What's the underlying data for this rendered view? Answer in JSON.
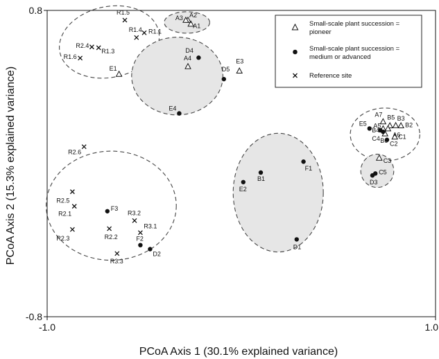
{
  "chart_data": {
    "type": "scatter",
    "title": "",
    "xlabel": "PCoA Axis 1 (30.1% explained variance)",
    "ylabel": "PCoA Axis 2  (15.3% explained variance)",
    "xlim": [
      -1.0,
      1.0
    ],
    "ylim": [
      -0.8,
      0.8
    ],
    "x_ticks": [
      {
        "value": -1.0,
        "label": "-1.0"
      },
      {
        "value": 1.0,
        "label": "1.0"
      }
    ],
    "y_ticks": [
      {
        "value": 0.8,
        "label": "0.8"
      },
      {
        "value": -0.8,
        "label": "-0.8"
      }
    ],
    "grid": false,
    "legend_position": "top-right",
    "colors": {
      "marker": "#111111",
      "hull_fill": "#e6e6e6",
      "hull_stroke": "#444444"
    },
    "series": [
      {
        "name": "Small-scale plant succession = pioneer",
        "marker": "triangle-open",
        "points": [
          {
            "label": "A1",
            "x": -0.26,
            "y": 0.729
          },
          {
            "label": "A2",
            "x": -0.275,
            "y": 0.749
          },
          {
            "label": "A3",
            "x": -0.286,
            "y": 0.749
          },
          {
            "label": "A4",
            "x": -0.275,
            "y": 0.507
          },
          {
            "label": "E1",
            "x": -0.63,
            "y": 0.467
          },
          {
            "label": "E3",
            "x": -0.01,
            "y": 0.484
          },
          {
            "label": "A7",
            "x": 0.73,
            "y": 0.219
          },
          {
            "label": "B5",
            "x": 0.765,
            "y": 0.198
          },
          {
            "label": "B3",
            "x": 0.795,
            "y": 0.199
          },
          {
            "label": "B2",
            "x": 0.822,
            "y": 0.198
          },
          {
            "label": "A5",
            "x": 0.73,
            "y": 0.182
          },
          {
            "label": "A6",
            "x": 0.755,
            "y": 0.182
          },
          {
            "label": "B6",
            "x": 0.74,
            "y": 0.156
          },
          {
            "label": "C1",
            "x": 0.79,
            "y": 0.139
          },
          {
            "label": "C3",
            "x": 0.71,
            "y": 0.029
          }
        ]
      },
      {
        "name": "Small-scale plant succession = medium or advanced",
        "marker": "circle-filled",
        "points": [
          {
            "label": "D4",
            "x": -0.22,
            "y": 0.553
          },
          {
            "label": "D5",
            "x": -0.09,
            "y": 0.441
          },
          {
            "label": "E4",
            "x": -0.32,
            "y": 0.262
          },
          {
            "label": "E5",
            "x": 0.66,
            "y": 0.183
          },
          {
            "label": "B4",
            "x": 0.715,
            "y": 0.174
          },
          {
            "label": "C4",
            "x": 0.73,
            "y": 0.166
          },
          {
            "label": "C2",
            "x": 0.75,
            "y": 0.124
          },
          {
            "label": "C5",
            "x": 0.69,
            "y": -0.052
          },
          {
            "label": "D3",
            "x": 0.675,
            "y": -0.062
          },
          {
            "label": "B1",
            "x": 0.1,
            "y": -0.047
          },
          {
            "label": "E2",
            "x": 0.01,
            "y": -0.097
          },
          {
            "label": "F1",
            "x": 0.32,
            "y": 0.01
          },
          {
            "label": "D1",
            "x": 0.285,
            "y": -0.396
          },
          {
            "label": "F3",
            "x": -0.69,
            "y": -0.249
          },
          {
            "label": "F2",
            "x": -0.52,
            "y": -0.426
          },
          {
            "label": "D2",
            "x": -0.47,
            "y": -0.447
          }
        ]
      },
      {
        "name": "Reference site",
        "marker": "x",
        "points": [
          {
            "label": "R1.5",
            "x": -0.6,
            "y": 0.749
          },
          {
            "label": "R1.4",
            "x": -0.54,
            "y": 0.658
          },
          {
            "label": "R1.1",
            "x": -0.5,
            "y": 0.683
          },
          {
            "label": "R2.4",
            "x": -0.77,
            "y": 0.609
          },
          {
            "label": "R1.3",
            "x": -0.735,
            "y": 0.605
          },
          {
            "label": "R1.6",
            "x": -0.83,
            "y": 0.551
          },
          {
            "label": "R2.6",
            "x": -0.81,
            "y": 0.088
          },
          {
            "label": "R2.5",
            "x": -0.87,
            "y": -0.147
          },
          {
            "label": "R2.1",
            "x": -0.86,
            "y": -0.223
          },
          {
            "label": "R2.3",
            "x": -0.87,
            "y": -0.344
          },
          {
            "label": "R2.2",
            "x": -0.68,
            "y": -0.34
          },
          {
            "label": "R3.2",
            "x": -0.55,
            "y": -0.298
          },
          {
            "label": "R3.1",
            "x": -0.52,
            "y": -0.361
          },
          {
            "label": "R3.3",
            "x": -0.64,
            "y": -0.47
          }
        ]
      }
    ],
    "groupings": [
      {
        "name": "reference-upper",
        "shaded": false,
        "cx": -0.68,
        "cy": 0.635,
        "rx": 0.26,
        "ry": 0.185,
        "angle": -12
      },
      {
        "name": "pioneer-A",
        "shaded": true,
        "cx": -0.28,
        "cy": 0.737,
        "rx": 0.117,
        "ry": 0.056,
        "angle": 0
      },
      {
        "name": "group-D-E",
        "shaded": true,
        "cx": -0.33,
        "cy": 0.457,
        "rx": 0.235,
        "ry": 0.203,
        "angle": 0
      },
      {
        "name": "reference-lower",
        "shaded": false,
        "cx": -0.67,
        "cy": -0.22,
        "rx": 0.335,
        "ry": 0.285,
        "angle": 0
      },
      {
        "name": "group-B-F-D1",
        "shaded": true,
        "cx": 0.19,
        "cy": -0.152,
        "rx": 0.232,
        "ry": 0.31,
        "angle": 0
      },
      {
        "name": "group-A-B-C",
        "shaded": false,
        "cx": 0.74,
        "cy": 0.152,
        "rx": 0.179,
        "ry": 0.138,
        "angle": 0
      },
      {
        "name": "group-C5-D3",
        "shaded": true,
        "cx": 0.7,
        "cy": -0.038,
        "rx": 0.085,
        "ry": 0.087,
        "angle": 0
      }
    ]
  }
}
